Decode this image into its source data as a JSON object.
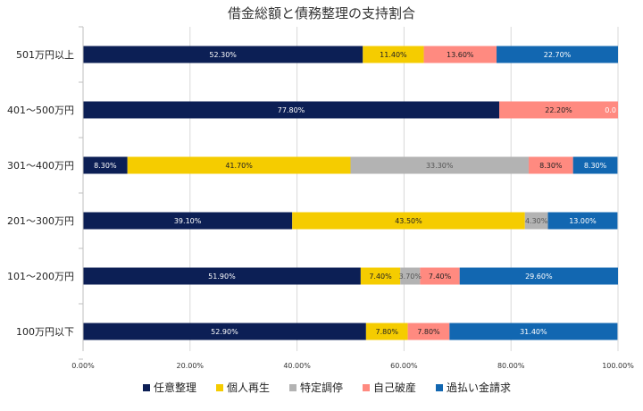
{
  "chart_data": {
    "type": "bar",
    "orientation": "horizontal",
    "stacked": "percent",
    "title": "借金総額と債務整理の支持割合",
    "categories": [
      "501万円以上",
      "401～500万円",
      "301～400万円",
      "201～300万円",
      "101～200万円",
      "100万円以下"
    ],
    "series": [
      {
        "name": "任意整理",
        "color": "#0c1f55",
        "label_color": "#ffffff",
        "values": [
          52.3,
          77.8,
          8.3,
          39.1,
          51.9,
          52.9
        ],
        "labels": [
          "52.30%",
          "77.80%",
          "8.30%",
          "39.10%",
          "51.90%",
          "52.90%"
        ]
      },
      {
        "name": "個人再生",
        "color": "#f5cc00",
        "label_color": "#222222",
        "values": [
          11.4,
          0,
          41.7,
          43.5,
          7.4,
          7.8
        ],
        "labels": [
          "11.40%",
          "",
          "41.70%",
          "43.50%",
          "7.40%",
          "7.80%"
        ]
      },
      {
        "name": "特定調停",
        "color": "#b3b3b3",
        "label_color": "#555555",
        "values": [
          0,
          0,
          33.3,
          4.3,
          3.7,
          0
        ],
        "labels": [
          "",
          "",
          "33.30%",
          "4.30%",
          "3.70%",
          ""
        ]
      },
      {
        "name": "自己破産",
        "color": "#ff8a80",
        "label_color": "#222222",
        "values": [
          13.6,
          22.2,
          8.3,
          0,
          7.4,
          7.8
        ],
        "labels": [
          "13.60%",
          "22.20%",
          "8.30%",
          "",
          "7.40%",
          "7.80%"
        ]
      },
      {
        "name": "過払い金請求",
        "color": "#1267b1",
        "label_color": "#ffffff",
        "values": [
          22.7,
          0,
          8.3,
          13.0,
          29.6,
          31.4
        ],
        "labels": [
          "22.70%",
          "0.0",
          "8.30%",
          "13.00%",
          "29.60%",
          "31.40%"
        ]
      }
    ],
    "xlim": [
      0,
      100
    ],
    "xticks": [
      "0.00%",
      "20.00%",
      "40.00%",
      "60.00%",
      "80.00%",
      "100.00%"
    ],
    "grid": true,
    "legend_position": "bottom"
  }
}
